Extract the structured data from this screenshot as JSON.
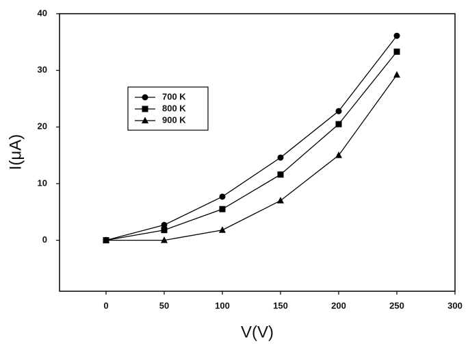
{
  "chart_data": {
    "type": "line",
    "x_label": "V(V)",
    "y_label": "I(μA)",
    "x": [
      0,
      50,
      100,
      150,
      200,
      250
    ],
    "series": [
      {
        "name": "700 K",
        "color": "#000000",
        "marker": "circle",
        "values": [
          0,
          2.7,
          7.7,
          14.6,
          22.8,
          36.1
        ]
      },
      {
        "name": "800 K",
        "color": "#000000",
        "marker": "square",
        "values": [
          0,
          1.8,
          5.5,
          11.6,
          20.5,
          33.3
        ]
      },
      {
        "name": "900 K",
        "color": "#000000",
        "marker": "triangle",
        "values": [
          0,
          0,
          1.8,
          7.0,
          15.0,
          29.2
        ]
      }
    ],
    "xlim": [
      -40,
      300
    ],
    "ylim": [
      -9,
      40
    ],
    "xticks": [
      0,
      50,
      100,
      150,
      200,
      250,
      300
    ],
    "yticks": [
      0,
      10,
      20,
      30,
      40
    ],
    "grid": false,
    "legend": "upper left"
  }
}
